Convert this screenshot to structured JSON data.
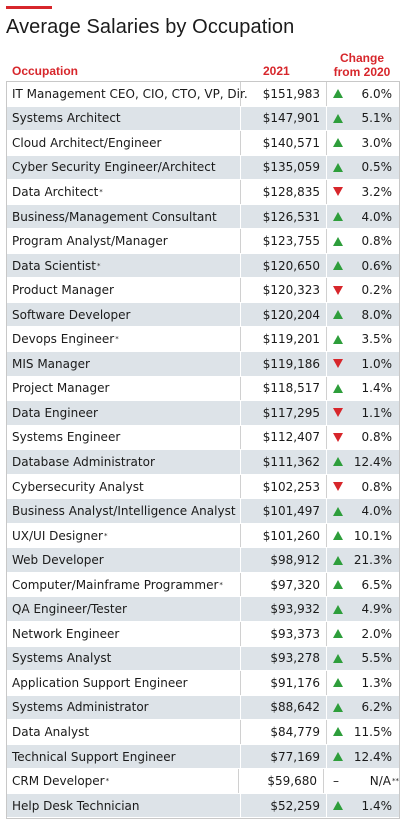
{
  "title": "Average Salaries by Occupation",
  "headers": {
    "occupation": "Occupation",
    "year": "2021",
    "change_line1": "Change",
    "change_line2": "from 2020"
  },
  "colors": {
    "accent": "#d7262b",
    "up": "#2e9e3b",
    "down": "#d7262b",
    "stripe": "#dde3e8"
  },
  "chart_data": {
    "type": "table",
    "title": "Average Salaries by Occupation",
    "columns": [
      "Occupation",
      "2021",
      "Change from 2020"
    ],
    "rows": [
      {
        "occupation": "IT Management CEO, CIO, CTO, VP, Dir.",
        "salary": "$151,983",
        "direction": "up",
        "change": "6.0%"
      },
      {
        "occupation": "Systems Architect",
        "salary": "$147,901",
        "direction": "up",
        "change": "5.1%"
      },
      {
        "occupation": "Cloud Architect/Engineer",
        "salary": "$140,571",
        "direction": "up",
        "change": "3.0%"
      },
      {
        "occupation": "Cyber Security Engineer/Architect",
        "salary": "$135,059",
        "direction": "up",
        "change": "0.5%"
      },
      {
        "occupation": "Data Architect",
        "star": "*",
        "salary": "$128,835",
        "direction": "down",
        "change": "3.2%"
      },
      {
        "occupation": "Business/Management Consultant",
        "salary": "$126,531",
        "direction": "up",
        "change": "4.0%"
      },
      {
        "occupation": "Program Analyst/Manager",
        "salary": "$123,755",
        "direction": "up",
        "change": "0.8%"
      },
      {
        "occupation": "Data Scientist",
        "star": "*",
        "salary": "$120,650",
        "direction": "up",
        "change": "0.6%"
      },
      {
        "occupation": "Product Manager",
        "salary": "$120,323",
        "direction": "down",
        "change": "0.2%"
      },
      {
        "occupation": "Software Developer",
        "salary": "$120,204",
        "direction": "up",
        "change": "8.0%"
      },
      {
        "occupation": "Devops Engineer",
        "star": "*",
        "salary": "$119,201",
        "direction": "up",
        "change": "3.5%"
      },
      {
        "occupation": "MIS Manager",
        "salary": "$119,186",
        "direction": "down",
        "change": "1.0%"
      },
      {
        "occupation": "Project Manager",
        "salary": "$118,517",
        "direction": "up",
        "change": "1.4%"
      },
      {
        "occupation": "Data Engineer",
        "salary": "$117,295",
        "direction": "down",
        "change": "1.1%"
      },
      {
        "occupation": "Systems Engineer",
        "salary": "$112,407",
        "direction": "down",
        "change": "0.8%"
      },
      {
        "occupation": "Database Administrator",
        "salary": "$111,362",
        "direction": "up",
        "change": "12.4%"
      },
      {
        "occupation": "Cybersecurity Analyst",
        "salary": "$102,253",
        "direction": "down",
        "change": "0.8%"
      },
      {
        "occupation": "Business Analyst/Intelligence Analyst",
        "salary": "$101,497",
        "direction": "up",
        "change": "4.0%"
      },
      {
        "occupation": "UX/UI Designer",
        "star": "*",
        "salary": "$101,260",
        "direction": "up",
        "change": "10.1%"
      },
      {
        "occupation": "Web Developer",
        "salary": "$98,912",
        "direction": "up",
        "change": "21.3%"
      },
      {
        "occupation": "Computer/Mainframe Programmer",
        "star": "*",
        "salary": "$97,320",
        "direction": "up",
        "change": "6.5%"
      },
      {
        "occupation": "QA Engineer/Tester",
        "salary": "$93,932",
        "direction": "up",
        "change": "4.9%"
      },
      {
        "occupation": "Network Engineer",
        "salary": "$93,373",
        "direction": "up",
        "change": "2.0%"
      },
      {
        "occupation": "Systems Analyst",
        "salary": "$93,278",
        "direction": "up",
        "change": "5.5%"
      },
      {
        "occupation": "Application Support Engineer",
        "salary": "$91,176",
        "direction": "up",
        "change": "1.3%"
      },
      {
        "occupation": "Systems Administrator",
        "salary": "$88,642",
        "direction": "up",
        "change": "6.2%"
      },
      {
        "occupation": "Data Analyst",
        "salary": "$84,779",
        "direction": "up",
        "change": "11.5%"
      },
      {
        "occupation": "Technical Support Engineer",
        "salary": "$77,169",
        "direction": "up",
        "change": "12.4%"
      },
      {
        "occupation": "CRM Developer",
        "star": "*",
        "salary": "$59,680",
        "direction": "none",
        "dash": "–",
        "change": "N/A",
        "change_star": "**"
      },
      {
        "occupation": "Help Desk Technician",
        "salary": "$52,259",
        "direction": "up",
        "change": "1.4%"
      }
    ]
  }
}
